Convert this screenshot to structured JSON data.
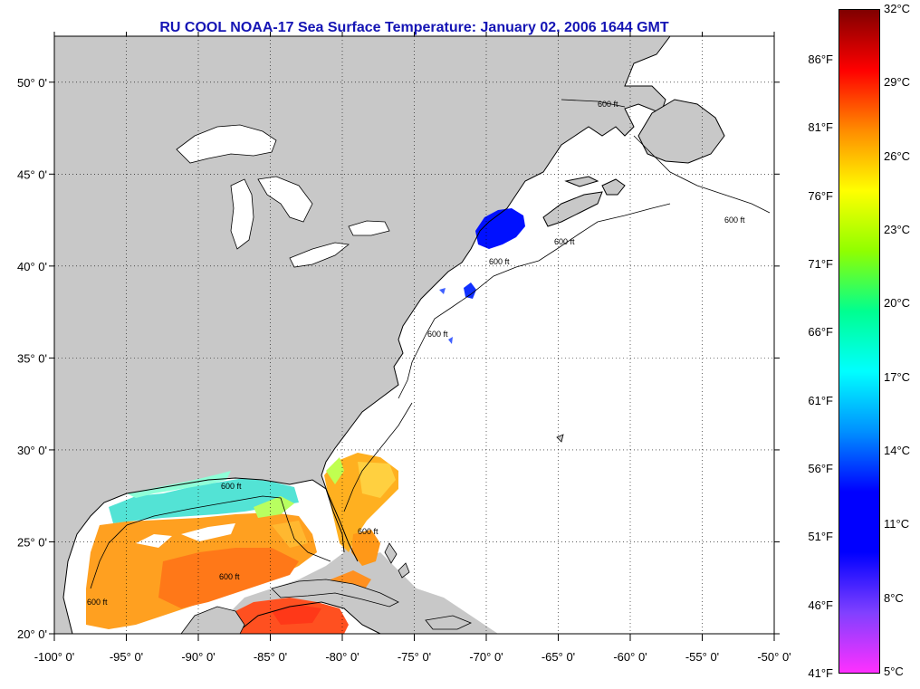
{
  "title": "RU COOL  NOAA-17  Sea Surface Temperature:  January 02, 2006 1644 GMT",
  "map": {
    "lon_range": [
      -100,
      -50
    ],
    "lat_range": [
      20,
      52.5
    ],
    "grid": true,
    "x_ticks": [
      "-100° 0'",
      "-95° 0'",
      "-90° 0'",
      "-85° 0'",
      "-80° 0'",
      "-75° 0'",
      "-70° 0'",
      "-65° 0'",
      "-60° 0'",
      "-55° 0'",
      "-50° 0'"
    ],
    "y_ticks": [
      "20° 0'",
      "25° 0'",
      "30° 0'",
      "35° 0'",
      "40° 0'",
      "45° 0'",
      "50° 0'"
    ],
    "contour_label": "600 ft",
    "colors": {
      "land": "#c8c8c8",
      "ocean": "#ffffff",
      "coast": "#000000"
    }
  },
  "colorbar": {
    "celsius": [
      "32°C",
      "29°C",
      "26°C",
      "23°C",
      "20°C",
      "17°C",
      "14°C",
      "11°C",
      "8°C",
      "5°C"
    ],
    "fahrenheit": [
      "86°F",
      "81°F",
      "76°F",
      "71°F",
      "66°F",
      "61°F",
      "56°F",
      "51°F",
      "46°F",
      "41°F"
    ],
    "gradient": [
      "#800000",
      "#ff0000",
      "#ff8c00",
      "#ffff00",
      "#90ff00",
      "#00ff90",
      "#00ffff",
      "#0090ff",
      "#0000ff",
      "#0000ff",
      "#8040ff",
      "#ff30ff"
    ]
  }
}
